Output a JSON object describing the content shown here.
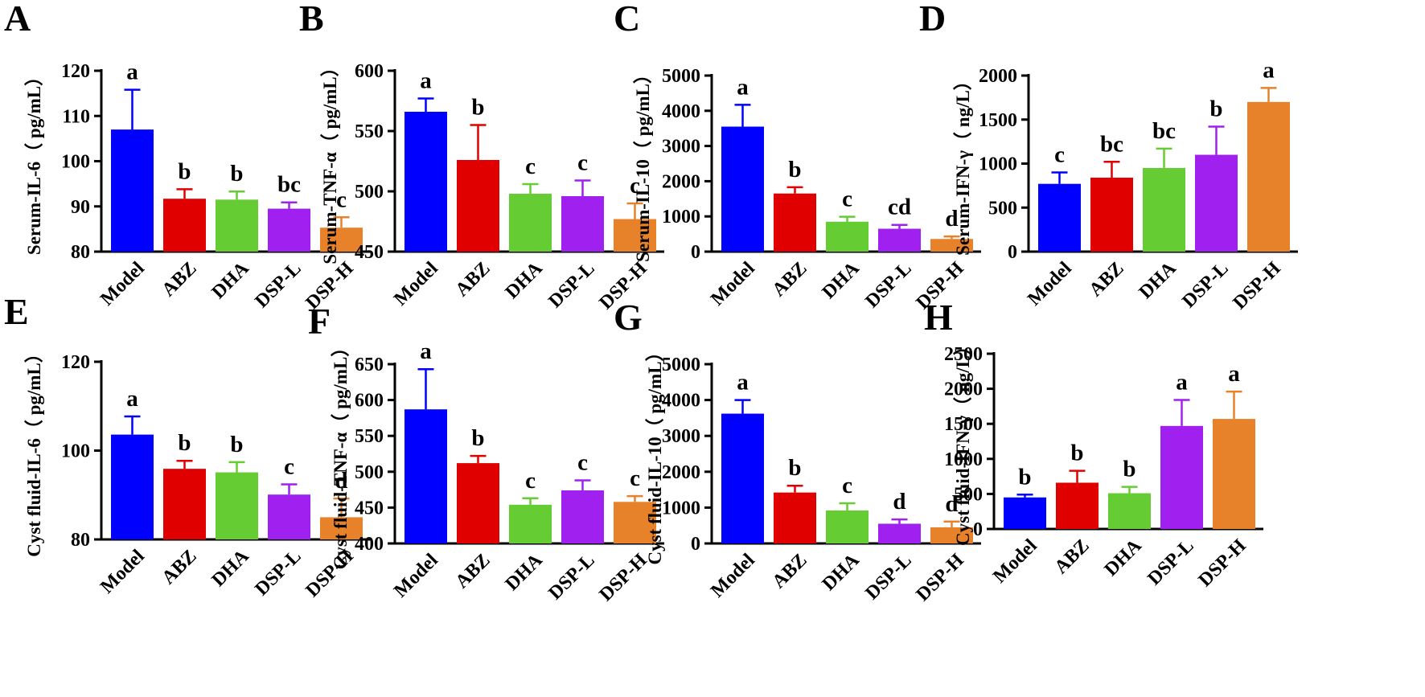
{
  "chart_data": [
    {
      "type": "bar",
      "panel": "A",
      "ylabel": "Serum-IL-6（ pg/mL）",
      "categories": [
        "Model",
        "ABZ",
        "DHA",
        "DSP-L",
        "DSP-H"
      ],
      "values": [
        107,
        91.7,
        91.5,
        89.5,
        85.3
      ],
      "errors": [
        8.8,
        2.1,
        1.8,
        1.4,
        2.3
      ],
      "significance": [
        "a",
        "b",
        "b",
        "bc",
        "c"
      ],
      "ylim": [
        80,
        120
      ],
      "ticks": [
        80,
        90,
        100,
        110,
        120
      ]
    },
    {
      "type": "bar",
      "panel": "B",
      "ylabel": "Serum-TNF-α（ pg/mL）",
      "categories": [
        "Model",
        "ABZ",
        "DHA",
        "DSP-L",
        "DSP-H"
      ],
      "values": [
        566,
        526,
        498,
        496,
        477
      ],
      "errors": [
        11,
        29,
        8,
        13,
        13
      ],
      "significance": [
        "a",
        "b",
        "c",
        "c",
        "c"
      ],
      "ylim": [
        450,
        600
      ],
      "ticks": [
        450,
        500,
        550,
        600
      ]
    },
    {
      "type": "bar",
      "panel": "C",
      "ylabel": "Serum-IL-10（ pg/mL）",
      "categories": [
        "Model",
        "ABZ",
        "DHA",
        "DSP-L",
        "DSP-H"
      ],
      "values": [
        3550,
        1650,
        850,
        650,
        360
      ],
      "errors": [
        620,
        180,
        140,
        110,
        70
      ],
      "significance": [
        "a",
        "b",
        "c",
        "cd",
        "d"
      ],
      "ylim": [
        0,
        5000
      ],
      "ticks": [
        0,
        1000,
        2000,
        3000,
        4000,
        5000
      ]
    },
    {
      "type": "bar",
      "panel": "D",
      "ylabel": "Serum-IFN-γ（ ng/L）",
      "categories": [
        "Model",
        "ABZ",
        "DHA",
        "DSP-L",
        "DSP-H"
      ],
      "values": [
        770,
        840,
        950,
        1100,
        1700
      ],
      "errors": [
        130,
        180,
        220,
        320,
        160
      ],
      "significance": [
        "c",
        "bc",
        "bc",
        "b",
        "a"
      ],
      "ylim": [
        0,
        2000
      ],
      "ticks": [
        0,
        500,
        1000,
        1500,
        2000
      ]
    },
    {
      "type": "bar",
      "panel": "E",
      "ylabel": "Cyst fluid-IL-6（ pg/mL）",
      "categories": [
        "Model",
        "ABZ",
        "DHA",
        "DSP-L",
        "DSP-H"
      ],
      "values": [
        103.6,
        95.9,
        95.1,
        90.1,
        85.0
      ],
      "errors": [
        4.1,
        1.8,
        2.3,
        2.3,
        4.2
      ],
      "significance": [
        "a",
        "b",
        "b",
        "c",
        "d"
      ],
      "ylim": [
        80,
        120
      ],
      "ticks": [
        80,
        100,
        120
      ]
    },
    {
      "type": "bar",
      "panel": "F",
      "ylabel": "Cyst fluid-TNF-α（ pg/mL）",
      "categories": [
        "Model",
        "ABZ",
        "DHA",
        "DSP-L",
        "DSP-H"
      ],
      "values": [
        587,
        512,
        454,
        474,
        458
      ],
      "errors": [
        56,
        10,
        9,
        14,
        8
      ],
      "significance": [
        "a",
        "b",
        "c",
        "c",
        "c"
      ],
      "ylim": [
        400,
        650
      ],
      "ticks": [
        400,
        450,
        500,
        550,
        600,
        650
      ]
    },
    {
      "type": "bar",
      "panel": "G",
      "ylabel": "Cyst fluid-IL-10（ pg/mL）",
      "categories": [
        "Model",
        "ABZ",
        "DHA",
        "DSP-L",
        "DSP-H"
      ],
      "values": [
        3620,
        1420,
        920,
        550,
        450
      ],
      "errors": [
        380,
        190,
        200,
        120,
        160
      ],
      "significance": [
        "a",
        "b",
        "c",
        "d",
        "d"
      ],
      "ylim": [
        0,
        5000
      ],
      "ticks": [
        0,
        1000,
        2000,
        3000,
        4000,
        5000
      ]
    },
    {
      "type": "bar",
      "panel": "H",
      "ylabel": "Cyst fluid-IFN-γ（ ng/L）",
      "categories": [
        "Model",
        "ABZ",
        "DHA",
        "DSP-L",
        "DSP-H"
      ],
      "values": [
        450,
        660,
        510,
        1470,
        1570
      ],
      "errors": [
        40,
        170,
        90,
        370,
        390
      ],
      "significance": [
        "b",
        "b",
        "b",
        "a",
        "a"
      ],
      "ylim": [
        0,
        2500
      ],
      "ticks": [
        0,
        500,
        1000,
        1500,
        2000,
        2500
      ]
    }
  ],
  "colors": {
    "Model": "#0000FF",
    "ABZ": "#E00000",
    "DHA": "#66CC33",
    "DSP-L": "#A020F0",
    "DSP-H": "#E8822A"
  }
}
